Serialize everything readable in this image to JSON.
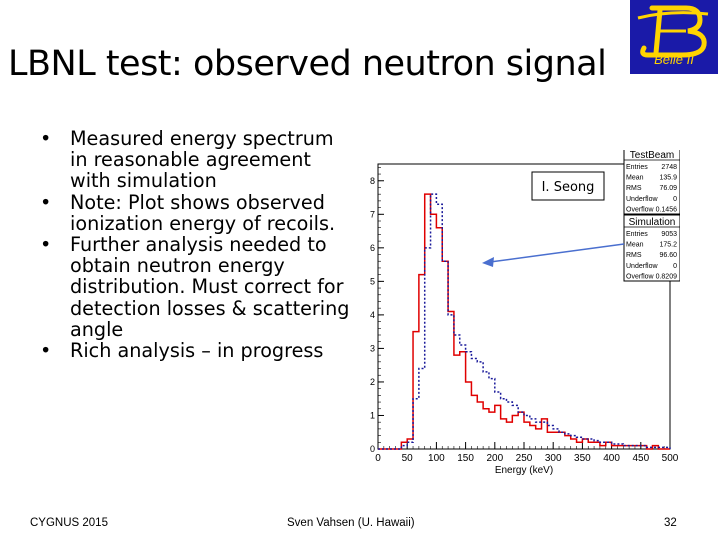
{
  "slide": {
    "title": "LBNL test: observed neutron signal",
    "logo_text": "Belle II",
    "logo_bg": "#1a1aa8",
    "logo_fg": "#ffd400",
    "bullets": [
      "Measured energy spectrum in reasonable agreement with simulation",
      "Note: Plot shows observed ionization energy of recoils.",
      "Further analysis needed to obtain neutron energy distribution. Must correct for detection losses & scattering angle",
      "Rich analysis – in progress"
    ],
    "bullet_symbol": "•",
    "annotation": "I. Seong",
    "footer_left": "CYGNUS 2015",
    "footer_center": "Sven Vahsen (U. Hawaii)",
    "footer_right": "32"
  },
  "chart_data": {
    "type": "histogram",
    "title": "",
    "xlabel": "Energy (keV)",
    "ylabel": "",
    "xlim": [
      0,
      500
    ],
    "ylim": [
      0,
      8.5
    ],
    "xticks": [
      0,
      50,
      100,
      150,
      200,
      250,
      300,
      350,
      400,
      450,
      500
    ],
    "yticks": [
      0,
      1,
      2,
      3,
      4,
      5,
      6,
      7,
      8
    ],
    "bin_width": 10,
    "bins_start": [
      0,
      10,
      20,
      30,
      40,
      50,
      60,
      70,
      80,
      90,
      100,
      110,
      120,
      130,
      140,
      150,
      160,
      170,
      180,
      190,
      200,
      210,
      220,
      230,
      240,
      250,
      260,
      270,
      280,
      290,
      300,
      310,
      320,
      330,
      340,
      350,
      360,
      370,
      380,
      390,
      400,
      410,
      420,
      430,
      440,
      450,
      460,
      470,
      480,
      490
    ],
    "series": [
      {
        "name": "TestBeam",
        "color": "#e00000",
        "dash": "",
        "values": [
          0,
          0,
          0,
          0,
          0.2,
          0.3,
          3.5,
          5.2,
          7.6,
          7.0,
          6.6,
          5.6,
          4.1,
          2.8,
          2.9,
          2.0,
          1.6,
          1.4,
          1.2,
          1.1,
          1.3,
          0.9,
          0.8,
          1.0,
          1.1,
          0.8,
          0.7,
          0.6,
          0.9,
          0.5,
          0.5,
          0.5,
          0.4,
          0.3,
          0.2,
          0.3,
          0.2,
          0.2,
          0.1,
          0.2,
          0.1,
          0.1,
          0.1,
          0.1,
          0.1,
          0.1,
          0.0,
          0.1,
          0.0,
          0.0
        ]
      },
      {
        "name": "Simulation",
        "color": "#1a1a9a",
        "dash": "2,2",
        "values": [
          0,
          0,
          0,
          0,
          0.1,
          0.2,
          1.5,
          2.4,
          6.0,
          7.6,
          7.3,
          5.6,
          4.0,
          3.4,
          3.1,
          2.9,
          2.7,
          2.6,
          2.3,
          2.1,
          1.7,
          1.5,
          1.4,
          1.3,
          1.1,
          1.0,
          0.9,
          0.8,
          0.8,
          0.7,
          0.6,
          0.5,
          0.45,
          0.4,
          0.35,
          0.3,
          0.3,
          0.25,
          0.2,
          0.2,
          0.15,
          0.15,
          0.1,
          0.1,
          0.1,
          0.1,
          0.05,
          0.05,
          0.05,
          0.05
        ]
      }
    ],
    "stats_boxes": [
      {
        "title": "TestBeam",
        "rows": [
          [
            "Entries",
            "2748"
          ],
          [
            "Mean",
            "135.9"
          ],
          [
            "RMS",
            "76.09"
          ],
          [
            "Underflow",
            "0"
          ],
          [
            "Overflow",
            "0.1456"
          ]
        ]
      },
      {
        "title": "Simulation",
        "rows": [
          [
            "Entries",
            "9053"
          ],
          [
            "Mean",
            "175.2"
          ],
          [
            "RMS",
            "96.60"
          ],
          [
            "Underflow",
            "0"
          ],
          [
            "Overflow",
            "0.8209"
          ]
        ]
      }
    ]
  }
}
